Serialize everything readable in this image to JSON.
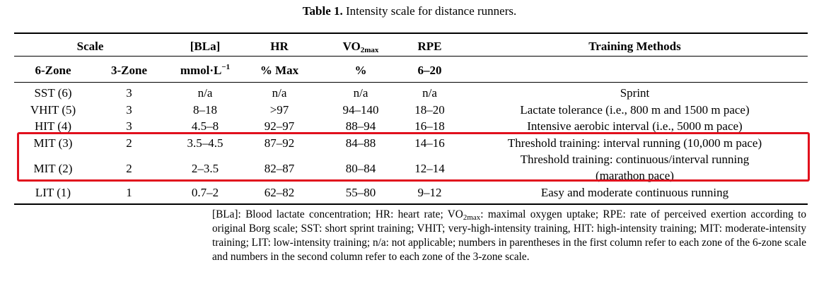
{
  "caption": {
    "label": "Table 1.",
    "text": " Intensity scale for distance runners."
  },
  "header1": {
    "scale": "Scale",
    "bla": "[BLa]",
    "hr": "HR",
    "vo2_main": "VO",
    "vo2_sub": "2max",
    "rpe": "RPE",
    "methods": "Training Methods"
  },
  "header2": {
    "zone6": "6-Zone",
    "zone3": "3-Zone",
    "bla_unit": "mmol·L",
    "bla_exp": "−1",
    "hr_unit": "% Max",
    "vo2_unit": "%",
    "rpe_unit": "6–20"
  },
  "rows": [
    {
      "z6": "SST (6)",
      "z3": "3",
      "bla": "n/a",
      "hr": "n/a",
      "vo2": "n/a",
      "rpe": "n/a",
      "method": "Sprint"
    },
    {
      "z6": "VHIT (5)",
      "z3": "3",
      "bla": "8–18",
      "hr": ">97",
      "vo2": "94–140",
      "rpe": "18–20",
      "method": "Lactate tolerance (i.e., 800 m and 1500 m pace)"
    },
    {
      "z6": "HIT (4)",
      "z3": "3",
      "bla": "4.5–8",
      "hr": "92–97",
      "vo2": "88–94",
      "rpe": "16–18",
      "method": "Intensive aerobic interval (i.e., 5000 m pace)"
    },
    {
      "z6": "MIT (3)",
      "z3": "2",
      "bla": "3.5–4.5",
      "hr": "87–92",
      "vo2": "84–88",
      "rpe": "14–16",
      "method": "Threshold training: interval running (10,000 m pace)"
    },
    {
      "z6": "MIT (2)",
      "z3": "2",
      "bla": "2–3.5",
      "hr": "82–87",
      "vo2": "80–84",
      "rpe": "12–14",
      "method_line1": "Threshold training: continuous/interval running",
      "method_line2": "(marathon pace)"
    },
    {
      "z6": "LIT (1)",
      "z3": "1",
      "bla": "0.7–2",
      "hr": "62–82",
      "vo2": "55–80",
      "rpe": "9–12",
      "method": "Easy and moderate continuous running"
    }
  ],
  "footnote": {
    "part1": "[BLa]: Blood lactate concentration; HR: heart rate; VO",
    "sub": "2max",
    "part2": ": maximal oxygen uptake; RPE: rate of perceived exertion according to original Borg scale; SST: short sprint training; VHIT; very-high-intensity training, HIT: high-intensity training; MIT: moderate-intensity training; LIT: low-intensity training; n/a: not applicable; numbers in parentheses in the first column refer to each zone of the 6-zone scale and numbers in the second column refer to each zone of the 3-zone scale."
  },
  "highlight_color": "#e1101d"
}
